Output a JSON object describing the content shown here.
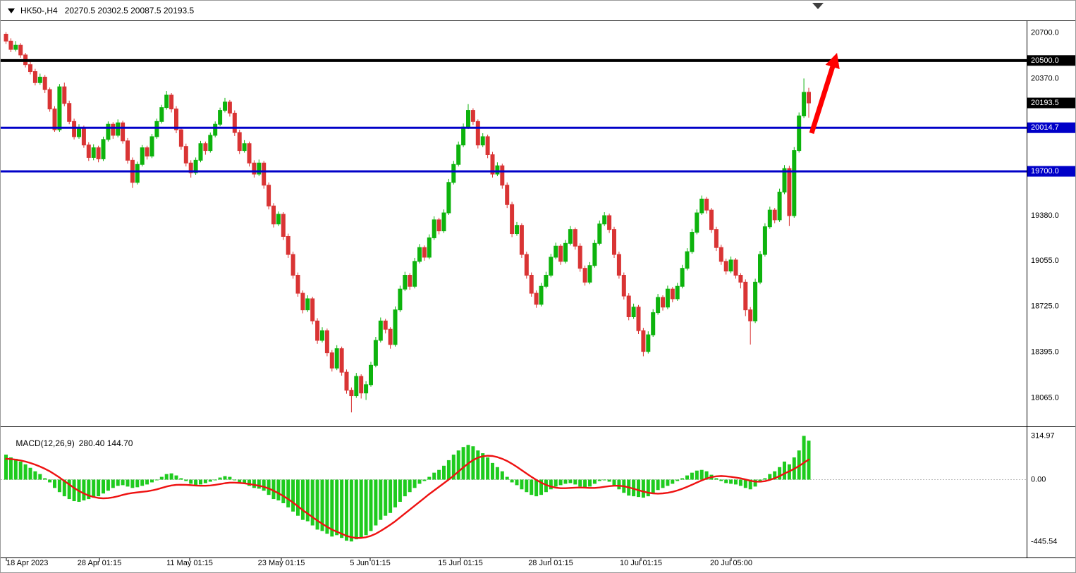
{
  "header": {
    "symbol": "HK50-,H4",
    "ohlc": "20270.5 20302.5 20087.5 20193.5"
  },
  "colors": {
    "bull": "#0db30d",
    "bear": "#d93434",
    "macd_bar": "#1ecb1e",
    "signal": "#ee1111",
    "arrow": "#ff0000",
    "level_black": "#000000",
    "level_blue": "#0000c8",
    "axis_text": "#000000",
    "label_text": "#ffffff"
  },
  "chart_data": {
    "type": "candlestick",
    "symbol": "HK50-",
    "timeframe": "H4",
    "title": "HK50-,H4 20270.5 20302.5 20087.5 20193.5",
    "current_price": 20193.5,
    "ylim": [
      17860,
      20790
    ],
    "grid": false,
    "y_axis": [
      {
        "value": 20700.0,
        "text": "20700.0"
      },
      {
        "value": 20370.0,
        "text": "20370.0"
      },
      {
        "value": 19380.0,
        "text": "19380.0"
      },
      {
        "value": 19055.0,
        "text": "19055.0"
      },
      {
        "value": 18725.0,
        "text": "18725.0"
      },
      {
        "value": 18395.0,
        "text": "18395.0"
      },
      {
        "value": 18065.0,
        "text": "18065.0"
      }
    ],
    "price_labels": [
      {
        "text": "20500.0",
        "value": 20500.0,
        "bg": "#000000"
      },
      {
        "text": "20193.5",
        "value": 20193.5,
        "bg": "#000000"
      },
      {
        "text": "20014.7",
        "value": 20014.7,
        "bg": "#0000c8"
      },
      {
        "text": "19700.0",
        "value": 19700.0,
        "bg": "#0000c8"
      }
    ],
    "hlines": [
      {
        "value": 20500.0,
        "color": "#000000",
        "width": 4
      },
      {
        "value": 20014.7,
        "color": "#0000c8",
        "width": 3
      },
      {
        "value": 19700.0,
        "color": "#0000c8",
        "width": 3
      }
    ],
    "arrow_annotation": {
      "from_price": 20014.7,
      "to_price": 20500.0,
      "color": "#ff0000"
    },
    "x_ticks": [
      "18 Apr 2023",
      "28 Apr 01:15",
      "11 May 01:15",
      "23 May 01:15",
      "5 Jun 01:15",
      "15 Jun 01:15",
      "28 Jun 01:15",
      "10 Jul 01:15",
      "20 Jul 05:00"
    ],
    "candle_format": "[open, high, low, close]",
    "candles_ohlc": [
      [
        20690,
        20705,
        20620,
        20640
      ],
      [
        20640,
        20660,
        20560,
        20580
      ],
      [
        20580,
        20640,
        20565,
        20610
      ],
      [
        20610,
        20625,
        20520,
        20540
      ],
      [
        20540,
        20555,
        20450,
        20470
      ],
      [
        20470,
        20500,
        20400,
        20420
      ],
      [
        20420,
        20440,
        20320,
        20340
      ],
      [
        20340,
        20405,
        20325,
        20380
      ],
      [
        20380,
        20395,
        20265,
        20290
      ],
      [
        20290,
        20305,
        20130,
        20150
      ],
      [
        20150,
        20170,
        19985,
        20000
      ],
      [
        20000,
        20330,
        19985,
        20310
      ],
      [
        20310,
        20340,
        20170,
        20190
      ],
      [
        20190,
        20210,
        20040,
        20060
      ],
      [
        20060,
        20080,
        19930,
        19950
      ],
      [
        19950,
        20040,
        19935,
        20010
      ],
      [
        20010,
        20030,
        19870,
        19890
      ],
      [
        19890,
        19910,
        19775,
        19800
      ],
      [
        19800,
        19895,
        19780,
        19870
      ],
      [
        19870,
        19885,
        19765,
        19790
      ],
      [
        19790,
        19950,
        19775,
        19930
      ],
      [
        19930,
        20060,
        19915,
        20040
      ],
      [
        20040,
        20055,
        19935,
        19960
      ],
      [
        19960,
        20075,
        19945,
        20050
      ],
      [
        20050,
        20065,
        19900,
        19920
      ],
      [
        19920,
        19940,
        19755,
        19780
      ],
      [
        19780,
        19800,
        19580,
        19620
      ],
      [
        19620,
        19770,
        19605,
        19750
      ],
      [
        19750,
        19890,
        19735,
        19870
      ],
      [
        19870,
        19885,
        19785,
        19810
      ],
      [
        19810,
        19970,
        19795,
        19950
      ],
      [
        19950,
        20080,
        19935,
        20060
      ],
      [
        20060,
        20180,
        20045,
        20160
      ],
      [
        20160,
        20280,
        20145,
        20250
      ],
      [
        20250,
        20265,
        20125,
        20150
      ],
      [
        20150,
        20170,
        19975,
        20000
      ],
      [
        20000,
        20020,
        19855,
        19880
      ],
      [
        19880,
        19900,
        19735,
        19760
      ],
      [
        19760,
        19780,
        19655,
        19690
      ],
      [
        19690,
        19800,
        19675,
        19780
      ],
      [
        19780,
        19920,
        19765,
        19900
      ],
      [
        19900,
        19915,
        19820,
        19850
      ],
      [
        19850,
        19980,
        19835,
        19960
      ],
      [
        19960,
        20060,
        19945,
        20040
      ],
      [
        20040,
        20160,
        20025,
        20140
      ],
      [
        20140,
        20230,
        20125,
        20200
      ],
      [
        20200,
        20215,
        20095,
        20120
      ],
      [
        20120,
        20140,
        19955,
        19980
      ],
      [
        19980,
        20000,
        19825,
        19850
      ],
      [
        19850,
        19925,
        19835,
        19900
      ],
      [
        19900,
        19915,
        19735,
        19760
      ],
      [
        19760,
        19780,
        19655,
        19680
      ],
      [
        19680,
        19785,
        19665,
        19760
      ],
      [
        19760,
        19775,
        19575,
        19600
      ],
      [
        19600,
        19620,
        19425,
        19450
      ],
      [
        19450,
        19470,
        19295,
        19320
      ],
      [
        19320,
        19410,
        19305,
        19390
      ],
      [
        19390,
        19405,
        19205,
        19230
      ],
      [
        19230,
        19250,
        19075,
        19100
      ],
      [
        19100,
        19120,
        18925,
        18950
      ],
      [
        18950,
        18970,
        18795,
        18820
      ],
      [
        18820,
        18840,
        18675,
        18700
      ],
      [
        18700,
        18805,
        18685,
        18780
      ],
      [
        18780,
        18795,
        18595,
        18620
      ],
      [
        18620,
        18640,
        18455,
        18480
      ],
      [
        18480,
        18575,
        18465,
        18550
      ],
      [
        18550,
        18565,
        18365,
        18390
      ],
      [
        18390,
        18410,
        18255,
        18280
      ],
      [
        18280,
        18445,
        18265,
        18420
      ],
      [
        18420,
        18435,
        18225,
        18250
      ],
      [
        18250,
        18270,
        18095,
        18120
      ],
      [
        18120,
        18140,
        17960,
        18080
      ],
      [
        18080,
        18245,
        18065,
        18220
      ],
      [
        18220,
        18235,
        18060,
        18100
      ],
      [
        18100,
        18185,
        18050,
        18160
      ],
      [
        18160,
        18325,
        18145,
        18300
      ],
      [
        18300,
        18505,
        18285,
        18480
      ],
      [
        18480,
        18645,
        18465,
        18620
      ],
      [
        18620,
        18635,
        18530,
        18560
      ],
      [
        18560,
        18575,
        18420,
        18450
      ],
      [
        18450,
        18725,
        18435,
        18700
      ],
      [
        18700,
        18875,
        18685,
        18850
      ],
      [
        18850,
        18975,
        18835,
        18950
      ],
      [
        18950,
        18965,
        18845,
        18870
      ],
      [
        18870,
        19075,
        18855,
        19050
      ],
      [
        19050,
        19175,
        19035,
        19150
      ],
      [
        19150,
        19165,
        19055,
        19080
      ],
      [
        19080,
        19245,
        19065,
        19220
      ],
      [
        19220,
        19375,
        19205,
        19350
      ],
      [
        19350,
        19365,
        19245,
        19270
      ],
      [
        19270,
        19425,
        19255,
        19400
      ],
      [
        19400,
        19645,
        19385,
        19620
      ],
      [
        19620,
        19775,
        19605,
        19750
      ],
      [
        19750,
        19915,
        19735,
        19890
      ],
      [
        19890,
        20045,
        19875,
        20020
      ],
      [
        20020,
        20185,
        20005,
        20140
      ],
      [
        20140,
        20155,
        20035,
        20060
      ],
      [
        20060,
        20075,
        19865,
        19890
      ],
      [
        19890,
        19975,
        19875,
        19950
      ],
      [
        19950,
        19965,
        19795,
        19820
      ],
      [
        19820,
        19840,
        19655,
        19680
      ],
      [
        19680,
        19765,
        19665,
        19740
      ],
      [
        19740,
        19755,
        19575,
        19600
      ],
      [
        19600,
        19620,
        19435,
        19460
      ],
      [
        19460,
        19480,
        19225,
        19250
      ],
      [
        19250,
        19335,
        19235,
        19310
      ],
      [
        19310,
        19325,
        19075,
        19100
      ],
      [
        19100,
        19120,
        18925,
        18950
      ],
      [
        18950,
        18970,
        18795,
        18820
      ],
      [
        18820,
        18840,
        18715,
        18740
      ],
      [
        18740,
        18895,
        18725,
        18870
      ],
      [
        18870,
        18975,
        18855,
        18950
      ],
      [
        18950,
        19105,
        18935,
        19080
      ],
      [
        19080,
        19185,
        19065,
        19160
      ],
      [
        19160,
        19175,
        19025,
        19050
      ],
      [
        19050,
        19205,
        19035,
        19180
      ],
      [
        19180,
        19305,
        19165,
        19280
      ],
      [
        19280,
        19295,
        19135,
        19160
      ],
      [
        19160,
        19180,
        18975,
        19000
      ],
      [
        19000,
        19020,
        18875,
        18900
      ],
      [
        18900,
        19045,
        18885,
        19020
      ],
      [
        19020,
        19205,
        19005,
        19180
      ],
      [
        19180,
        19345,
        19165,
        19320
      ],
      [
        19320,
        19405,
        19305,
        19380
      ],
      [
        19380,
        19395,
        19255,
        19280
      ],
      [
        19280,
        19300,
        19075,
        19100
      ],
      [
        19100,
        19120,
        18925,
        18950
      ],
      [
        18950,
        18970,
        18775,
        18800
      ],
      [
        18800,
        18820,
        18625,
        18650
      ],
      [
        18650,
        18745,
        18635,
        18720
      ],
      [
        18720,
        18735,
        18525,
        18550
      ],
      [
        18550,
        18570,
        18365,
        18400
      ],
      [
        18400,
        18545,
        18385,
        18520
      ],
      [
        18520,
        18705,
        18505,
        18680
      ],
      [
        18680,
        18815,
        18665,
        18790
      ],
      [
        18790,
        18805,
        18695,
        18720
      ],
      [
        18720,
        18875,
        18705,
        18850
      ],
      [
        18850,
        18865,
        18755,
        18780
      ],
      [
        18780,
        18895,
        18765,
        18870
      ],
      [
        18870,
        19025,
        18855,
        19000
      ],
      [
        19000,
        19145,
        18985,
        19120
      ],
      [
        19120,
        19285,
        19105,
        19260
      ],
      [
        19260,
        19425,
        19245,
        19400
      ],
      [
        19400,
        19525,
        19385,
        19500
      ],
      [
        19500,
        19515,
        19395,
        19420
      ],
      [
        19420,
        19435,
        19255,
        19280
      ],
      [
        19280,
        19300,
        19125,
        19150
      ],
      [
        19150,
        19170,
        19025,
        19050
      ],
      [
        19050,
        19070,
        18955,
        18980
      ],
      [
        18980,
        19085,
        18965,
        19060
      ],
      [
        19060,
        19075,
        18925,
        18950
      ],
      [
        18950,
        18965,
        18855,
        18900
      ],
      [
        18900,
        18920,
        18655,
        18700
      ],
      [
        18700,
        18720,
        18450,
        18620
      ],
      [
        18620,
        18925,
        18605,
        18900
      ],
      [
        18900,
        19125,
        18885,
        19100
      ],
      [
        19100,
        19325,
        19085,
        19300
      ],
      [
        19300,
        19445,
        19285,
        19420
      ],
      [
        19420,
        19435,
        19325,
        19350
      ],
      [
        19350,
        19575,
        19335,
        19550
      ],
      [
        19550,
        19745,
        19535,
        19720
      ],
      [
        19720,
        19740,
        19305,
        19380
      ],
      [
        19380,
        19875,
        19365,
        19850
      ],
      [
        19850,
        20125,
        19835,
        20100
      ],
      [
        20100,
        20370,
        20085,
        20270
      ],
      [
        20270.5,
        20302.5,
        20087.5,
        20193.5
      ]
    ],
    "macd": {
      "label": "MACD(12,26,9)",
      "values_text": "280.40 144.70",
      "main_value": 280.4,
      "signal_value": 144.7,
      "axis": [
        {
          "value": 314.97,
          "text": "314.97"
        },
        {
          "value": 0,
          "text": "0.00"
        },
        {
          "value": -445.54,
          "text": "-445.54"
        }
      ],
      "histogram": [
        180,
        160,
        150,
        130,
        110,
        85,
        60,
        40,
        10,
        -20,
        -60,
        -90,
        -120,
        -140,
        -155,
        -160,
        -150,
        -140,
        -130,
        -120,
        -100,
        -80,
        -60,
        -45,
        -40,
        -50,
        -60,
        -55,
        -45,
        -35,
        -20,
        0,
        20,
        40,
        45,
        30,
        10,
        -10,
        -30,
        -40,
        -35,
        -25,
        -15,
        0,
        15,
        25,
        20,
        0,
        -20,
        -30,
        -45,
        -60,
        -65,
        -80,
        -110,
        -140,
        -150,
        -170,
        -200,
        -230,
        -260,
        -290,
        -300,
        -330,
        -360,
        -370,
        -390,
        -410,
        -400,
        -420,
        -440,
        -445.54,
        -430,
        -420,
        -400,
        -370,
        -330,
        -290,
        -260,
        -240,
        -200,
        -160,
        -120,
        -90,
        -60,
        -30,
        -10,
        20,
        50,
        70,
        100,
        140,
        180,
        210,
        235,
        250,
        240,
        210,
        190,
        160,
        120,
        90,
        60,
        20,
        -20,
        -40,
        -70,
        -90,
        -110,
        -120,
        -110,
        -90,
        -70,
        -50,
        -40,
        -30,
        -25,
        -35,
        -50,
        -60,
        -50,
        -30,
        -10,
        0,
        -15,
        -40,
        -70,
        -95,
        -115,
        -120,
        -125,
        -130,
        -120,
        -100,
        -75,
        -60,
        -45,
        -30,
        -10,
        10,
        30,
        50,
        65,
        70,
        60,
        35,
        10,
        -10,
        -25,
        -30,
        -35,
        -45,
        -60,
        -70,
        -50,
        -20,
        10,
        40,
        60,
        90,
        130,
        110,
        160,
        210,
        314.97,
        280.4
      ],
      "signal": [
        150,
        148,
        144,
        138,
        130,
        120,
        108,
        94,
        78,
        60,
        38,
        15,
        -10,
        -35,
        -60,
        -82,
        -100,
        -115,
        -125,
        -132,
        -135,
        -133,
        -128,
        -120,
        -110,
        -102,
        -96,
        -92,
        -88,
        -84,
        -78,
        -70,
        -60,
        -50,
        -42,
        -38,
        -37,
        -38,
        -40,
        -43,
        -44,
        -44,
        -42,
        -38,
        -32,
        -26,
        -22,
        -22,
        -24,
        -27,
        -32,
        -38,
        -44,
        -52,
        -64,
        -80,
        -98,
        -118,
        -140,
        -165,
        -192,
        -220,
        -245,
        -270,
        -295,
        -318,
        -340,
        -360,
        -375,
        -390,
        -405,
        -415,
        -420,
        -420,
        -415,
        -405,
        -390,
        -370,
        -348,
        -325,
        -300,
        -272,
        -244,
        -216,
        -188,
        -160,
        -132,
        -104,
        -78,
        -52,
        -26,
        0,
        28,
        58,
        88,
        116,
        140,
        158,
        168,
        172,
        170,
        162,
        150,
        134,
        114,
        92,
        68,
        44,
        20,
        -2,
        -22,
        -38,
        -50,
        -58,
        -62,
        -62,
        -60,
        -58,
        -57,
        -58,
        -60,
        -60,
        -57,
        -52,
        -47,
        -44,
        -44,
        -48,
        -56,
        -66,
        -76,
        -86,
        -94,
        -99,
        -101,
        -99,
        -95,
        -88,
        -78,
        -66,
        -52,
        -37,
        -21,
        -6,
        8,
        18,
        24,
        26,
        24,
        20,
        15,
        9,
        1,
        -8,
        -14,
        -15,
        -11,
        -2,
        10,
        25,
        44,
        60,
        78,
        98,
        122,
        144.7
      ]
    }
  }
}
